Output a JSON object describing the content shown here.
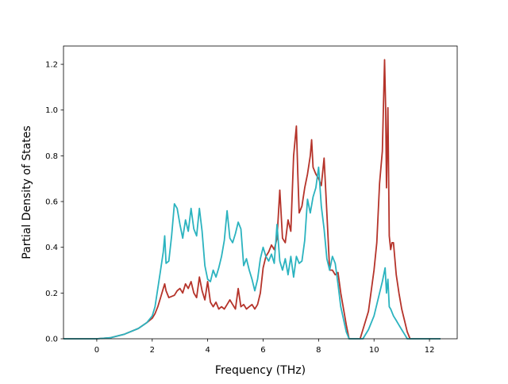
{
  "chart_data": {
    "type": "line",
    "xlabel": "Frequency (THz)",
    "ylabel": "Partial Density of States",
    "xlim": [
      -1.2,
      13.0
    ],
    "ylim": [
      0.0,
      1.28
    ],
    "xticks": [
      0,
      2,
      4,
      6,
      8,
      10,
      12
    ],
    "yticks": [
      0.0,
      0.2,
      0.4,
      0.6,
      0.8,
      1.0,
      1.2
    ],
    "xtick_labels": [
      "0",
      "2",
      "4",
      "6",
      "8",
      "10",
      "12"
    ],
    "ytick_labels": [
      "0.0",
      "0.2",
      "0.4",
      "0.6",
      "0.8",
      "1.0",
      "1.2"
    ],
    "grid": false,
    "series": [
      {
        "color": "#b5332a",
        "x": [
          -1.2,
          0.0,
          0.5,
          1.0,
          1.5,
          1.8,
          2.0,
          2.1,
          2.2,
          2.3,
          2.4,
          2.45,
          2.5,
          2.6,
          2.8,
          2.9,
          3.0,
          3.1,
          3.2,
          3.3,
          3.4,
          3.5,
          3.6,
          3.7,
          3.8,
          3.9,
          4.0,
          4.1,
          4.2,
          4.3,
          4.4,
          4.5,
          4.6,
          4.7,
          4.8,
          4.9,
          5.0,
          5.1,
          5.2,
          5.3,
          5.4,
          5.5,
          5.6,
          5.7,
          5.8,
          5.9,
          6.0,
          6.1,
          6.2,
          6.3,
          6.4,
          6.5,
          6.6,
          6.7,
          6.8,
          6.9,
          7.0,
          7.1,
          7.2,
          7.25,
          7.3,
          7.4,
          7.5,
          7.6,
          7.7,
          7.75,
          7.8,
          7.9,
          8.0,
          8.1,
          8.2,
          8.3,
          8.4,
          8.5,
          8.6,
          8.7,
          8.8,
          9.0,
          9.1,
          9.2,
          9.4,
          9.5,
          9.6,
          9.8,
          10.0,
          10.1,
          10.2,
          10.3,
          10.38,
          10.42,
          10.45,
          10.5,
          10.55,
          10.6,
          10.65,
          10.7,
          10.8,
          10.9,
          11.0,
          11.1,
          11.2,
          11.3,
          12.4
        ],
        "y": [
          0.0,
          0.0,
          0.005,
          0.02,
          0.045,
          0.07,
          0.09,
          0.11,
          0.14,
          0.18,
          0.22,
          0.24,
          0.21,
          0.18,
          0.19,
          0.21,
          0.22,
          0.2,
          0.24,
          0.22,
          0.25,
          0.2,
          0.18,
          0.27,
          0.21,
          0.17,
          0.25,
          0.16,
          0.14,
          0.16,
          0.13,
          0.14,
          0.13,
          0.15,
          0.17,
          0.15,
          0.13,
          0.22,
          0.14,
          0.15,
          0.13,
          0.14,
          0.15,
          0.13,
          0.15,
          0.2,
          0.31,
          0.36,
          0.38,
          0.41,
          0.39,
          0.44,
          0.65,
          0.44,
          0.42,
          0.52,
          0.47,
          0.8,
          0.93,
          0.72,
          0.55,
          0.58,
          0.66,
          0.72,
          0.8,
          0.87,
          0.75,
          0.72,
          0.7,
          0.67,
          0.79,
          0.55,
          0.3,
          0.3,
          0.28,
          0.29,
          0.2,
          0.06,
          0.0,
          0.0,
          0.0,
          0.0,
          0.04,
          0.12,
          0.3,
          0.42,
          0.68,
          0.82,
          1.22,
          1.0,
          0.66,
          1.01,
          0.45,
          0.39,
          0.42,
          0.42,
          0.28,
          0.2,
          0.13,
          0.08,
          0.03,
          0.0,
          0.0
        ]
      },
      {
        "color": "#2bb3bf",
        "x": [
          -1.2,
          0.0,
          0.5,
          1.0,
          1.5,
          1.8,
          2.0,
          2.1,
          2.2,
          2.3,
          2.4,
          2.45,
          2.5,
          2.6,
          2.7,
          2.8,
          2.9,
          3.0,
          3.1,
          3.2,
          3.3,
          3.4,
          3.5,
          3.6,
          3.7,
          3.8,
          3.9,
          4.0,
          4.1,
          4.2,
          4.3,
          4.4,
          4.5,
          4.6,
          4.7,
          4.8,
          4.9,
          5.0,
          5.1,
          5.2,
          5.3,
          5.4,
          5.5,
          5.6,
          5.7,
          5.8,
          5.9,
          6.0,
          6.1,
          6.2,
          6.3,
          6.4,
          6.5,
          6.6,
          6.7,
          6.8,
          6.9,
          7.0,
          7.1,
          7.2,
          7.3,
          7.4,
          7.5,
          7.6,
          7.7,
          7.8,
          7.9,
          8.0,
          8.1,
          8.2,
          8.3,
          8.4,
          8.5,
          8.6,
          8.7,
          8.8,
          9.0,
          9.1,
          9.2,
          9.4,
          9.5,
          9.6,
          9.8,
          10.0,
          10.1,
          10.2,
          10.3,
          10.4,
          10.45,
          10.5,
          10.55,
          10.6,
          10.7,
          10.8,
          10.9,
          11.0,
          11.1,
          11.2,
          11.3,
          12.4
        ],
        "y": [
          0.0,
          0.0,
          0.005,
          0.02,
          0.045,
          0.07,
          0.1,
          0.14,
          0.22,
          0.3,
          0.38,
          0.45,
          0.33,
          0.34,
          0.45,
          0.59,
          0.57,
          0.5,
          0.44,
          0.52,
          0.47,
          0.57,
          0.48,
          0.45,
          0.57,
          0.47,
          0.32,
          0.26,
          0.25,
          0.3,
          0.27,
          0.31,
          0.36,
          0.43,
          0.56,
          0.44,
          0.42,
          0.46,
          0.51,
          0.48,
          0.32,
          0.35,
          0.3,
          0.26,
          0.21,
          0.26,
          0.35,
          0.4,
          0.36,
          0.34,
          0.37,
          0.33,
          0.5,
          0.34,
          0.3,
          0.35,
          0.28,
          0.36,
          0.27,
          0.36,
          0.33,
          0.34,
          0.43,
          0.61,
          0.55,
          0.62,
          0.66,
          0.75,
          0.58,
          0.48,
          0.35,
          0.3,
          0.36,
          0.33,
          0.24,
          0.14,
          0.03,
          0.0,
          0.0,
          0.0,
          0.0,
          0.0,
          0.04,
          0.1,
          0.15,
          0.2,
          0.25,
          0.31,
          0.2,
          0.26,
          0.14,
          0.13,
          0.1,
          0.08,
          0.06,
          0.04,
          0.02,
          0.0,
          0.0,
          0.0
        ]
      }
    ]
  }
}
